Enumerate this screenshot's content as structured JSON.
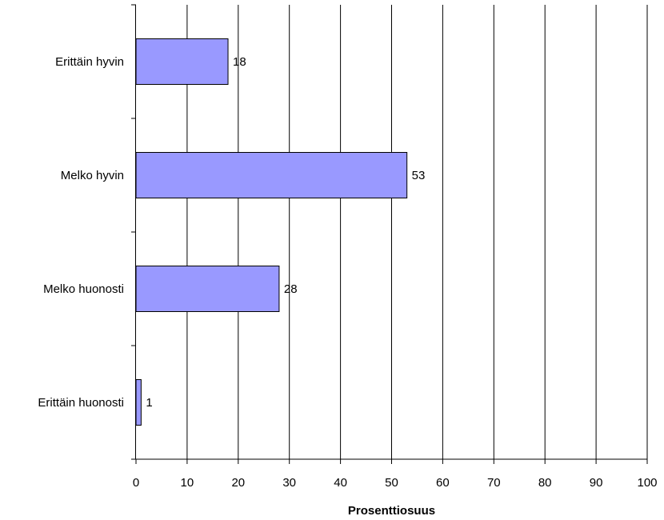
{
  "chart_data": {
    "type": "bar",
    "orientation": "horizontal",
    "categories": [
      "Erittäin hyvin",
      "Melko hyvin",
      "Melko huonosti",
      "Erittäin huonosti"
    ],
    "values": [
      18,
      53,
      28,
      1
    ],
    "data_labels": [
      "18",
      "53",
      "28",
      "1"
    ],
    "xlabel": "Prosenttiosuus",
    "ylabel": "",
    "xlim": [
      0,
      100
    ],
    "x_ticks": [
      0,
      10,
      20,
      30,
      40,
      50,
      60,
      70,
      80,
      90,
      100
    ],
    "x_tick_labels": [
      "0",
      "10",
      "20",
      "30",
      "40",
      "50",
      "60",
      "70",
      "80",
      "90",
      "100"
    ],
    "grid": "vertical",
    "legend": "none",
    "bar_color": "#9999ff",
    "bar_border_color": "#000000"
  }
}
